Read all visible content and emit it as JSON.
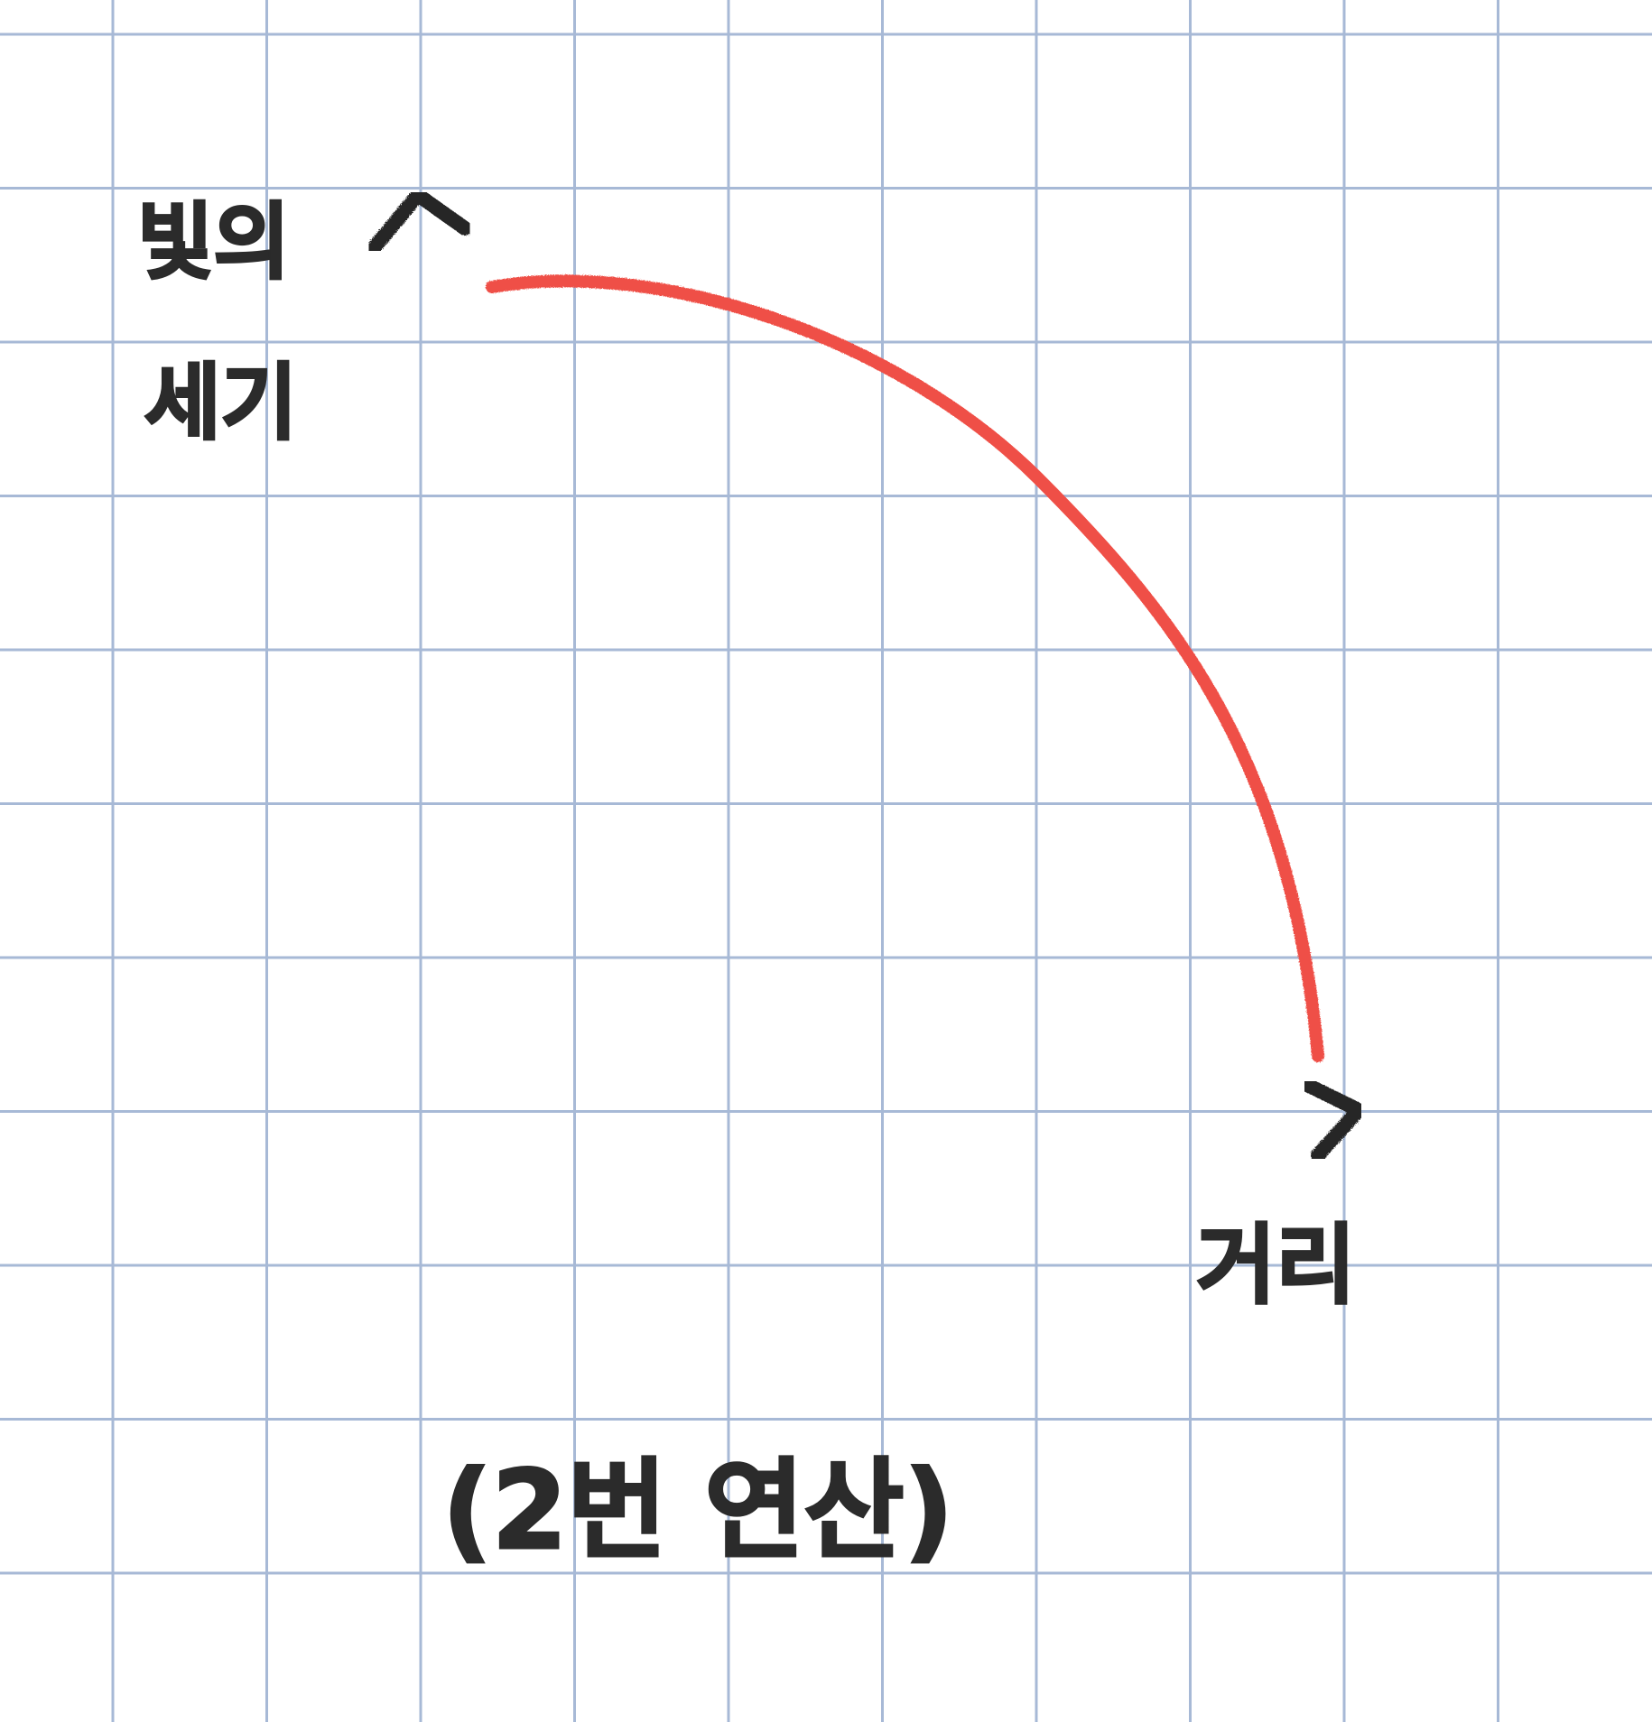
{
  "diagram": {
    "y_axis_label_line1": "빛의",
    "y_axis_label_line2": "세기",
    "x_axis_label": "거리",
    "caption": "(2번 연산)",
    "colors": {
      "grid": "#a7b9d6",
      "axes": "#262626",
      "curve": "#ef5046",
      "text": "#2b2b2b",
      "paper": "#ffffff"
    }
  }
}
